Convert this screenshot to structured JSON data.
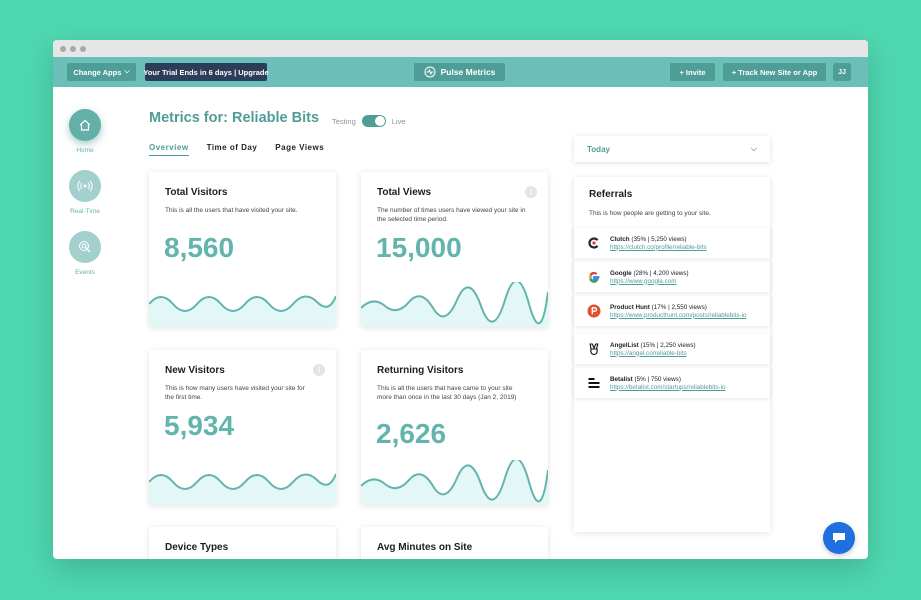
{
  "topbar": {
    "change_apps": "Change Apps",
    "trial": "Your Trial Ends in 6 days | Upgrade",
    "brand": "Pulse Metrics",
    "invite": "+ Invite",
    "track": "+ Track New Site or App",
    "avatar": "JJ"
  },
  "nav": {
    "home": "Home",
    "realtime": "Real-Time",
    "events": "Events"
  },
  "header": {
    "title": "Metrics for: Reliable Bits",
    "toggle_left": "Testing",
    "toggle_right": "Live"
  },
  "tabs": [
    "Overview",
    "Time of Day",
    "Page Views"
  ],
  "cards": {
    "total_visitors": {
      "title": "Total Visitors",
      "desc": "This is all the users that have visited your site.",
      "value": "8,560"
    },
    "total_views": {
      "title": "Total Views",
      "desc": "The number of times users have viewed your site in the selected time period.",
      "value": "15,000"
    },
    "new_visitors": {
      "title": "New Visitors",
      "desc": "This is how many users have visited your site for the first time.",
      "value": "5,934"
    },
    "returning_visitors": {
      "title": "Returning Visitors",
      "desc": "This is all the users that have came to your site more than once in the last 30 days (Jan 2, 2019)",
      "value": "2,626"
    },
    "device_types": {
      "title": "Device Types"
    },
    "avg_minutes": {
      "title": "Avg Minutes on Site"
    }
  },
  "date_select": {
    "value": "Today"
  },
  "referrals": {
    "title": "Referrals",
    "subtitle": "This is how people are getting to your site.",
    "items": [
      {
        "name": "Clutch",
        "stats": "(35% | 5,250 views)",
        "link": "https://clutch.co/profile/reliable-bits",
        "icon": "clutch-icon"
      },
      {
        "name": "Google",
        "stats": "(28% | 4,200 views)",
        "link": "https://www.google.com",
        "icon": "google-icon"
      },
      {
        "name": "Product Hunt",
        "stats": "(17% | 2,550 views)",
        "link": "https://www.producthunt.com/posts/reliablebits-io",
        "icon": "producthunt-icon"
      },
      {
        "name": "AngelList",
        "stats": "(15% | 2,250 views)",
        "link": "https://angel.co/reliable-bits",
        "icon": "angellist-icon"
      },
      {
        "name": "Betalist",
        "stats": "(5% | 750 views)",
        "link": "https://betalist.com/startups/reliablebits-io",
        "icon": "betalist-icon"
      }
    ]
  },
  "colors": {
    "background": "#4fd8b0",
    "topbar": "#6cbfb9",
    "accent": "#4f9d97",
    "number": "#62b4ad",
    "trial_badge": "#2c3e57",
    "chat": "#1f6fe0"
  }
}
